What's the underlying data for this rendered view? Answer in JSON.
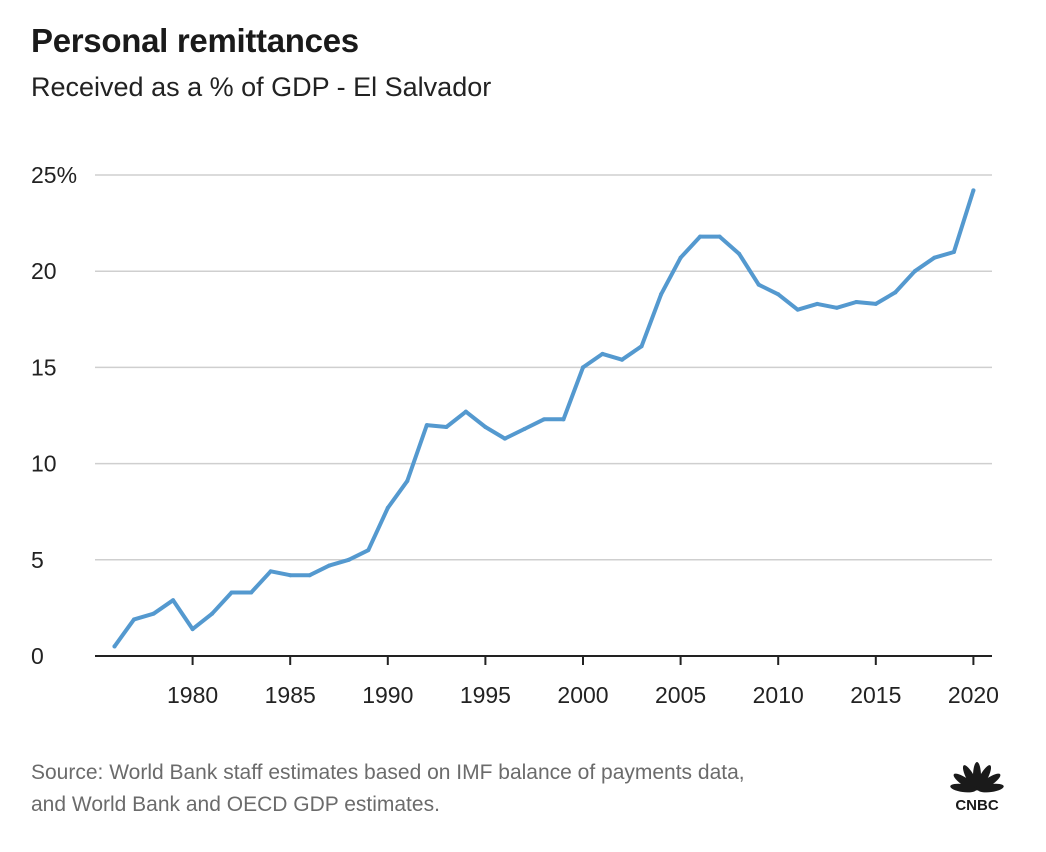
{
  "header": {
    "title": "Personal remittances",
    "subtitle": "Received as a % of GDP - El Salvador"
  },
  "footer": {
    "source_line1": "Source: World Bank staff estimates based on IMF balance of payments data,",
    "source_line2": "and World Bank and OECD GDP estimates.",
    "logo_text": "CNBC"
  },
  "colors": {
    "line": "#5499cf",
    "grid": "#cfcfcf",
    "axis": "#222222"
  },
  "chart_data": {
    "type": "line",
    "title": "Personal remittances",
    "subtitle": "Received as a % of GDP - El Salvador",
    "xlabel": "",
    "ylabel": "",
    "xlim": [
      1975,
      2021
    ],
    "ylim": [
      0,
      25
    ],
    "grid": true,
    "y_ticks": [
      {
        "value": 0,
        "label": "0"
      },
      {
        "value": 5,
        "label": "5"
      },
      {
        "value": 10,
        "label": "10"
      },
      {
        "value": 15,
        "label": "15"
      },
      {
        "value": 20,
        "label": "20"
      },
      {
        "value": 25,
        "label": "25%"
      }
    ],
    "x_ticks": [
      {
        "value": 1980,
        "label": "1980"
      },
      {
        "value": 1985,
        "label": "1985"
      },
      {
        "value": 1990,
        "label": "1990"
      },
      {
        "value": 1995,
        "label": "1995"
      },
      {
        "value": 2000,
        "label": "2000"
      },
      {
        "value": 2005,
        "label": "2005"
      },
      {
        "value": 2010,
        "label": "2010"
      },
      {
        "value": 2015,
        "label": "2015"
      },
      {
        "value": 2020,
        "label": "2020"
      }
    ],
    "series": [
      {
        "x": [
          1976,
          1977,
          1978,
          1979,
          1980,
          1981,
          1982,
          1983,
          1984,
          1985,
          1986,
          1987,
          1988,
          1989,
          1990,
          1991,
          1992,
          1993,
          1994,
          1995,
          1996,
          1997,
          1998,
          1999,
          2000,
          2001,
          2002,
          2003,
          2004,
          2005,
          2006,
          2007,
          2008,
          2009,
          2010,
          2011,
          2012,
          2013,
          2014,
          2015,
          2016,
          2017,
          2018,
          2019,
          2020
        ],
        "values": [
          0.5,
          1.9,
          2.2,
          2.9,
          1.4,
          2.2,
          3.3,
          3.3,
          4.4,
          4.2,
          4.2,
          4.7,
          5.0,
          5.5,
          7.7,
          9.1,
          12.0,
          11.9,
          12.7,
          11.9,
          11.3,
          11.8,
          12.3,
          12.3,
          15.0,
          15.7,
          15.4,
          16.1,
          18.8,
          20.7,
          21.8,
          21.8,
          20.9,
          19.3,
          18.8,
          18.0,
          18.3,
          18.1,
          18.4,
          18.3,
          18.9,
          20.0,
          20.7,
          21.0,
          24.2
        ]
      }
    ]
  }
}
